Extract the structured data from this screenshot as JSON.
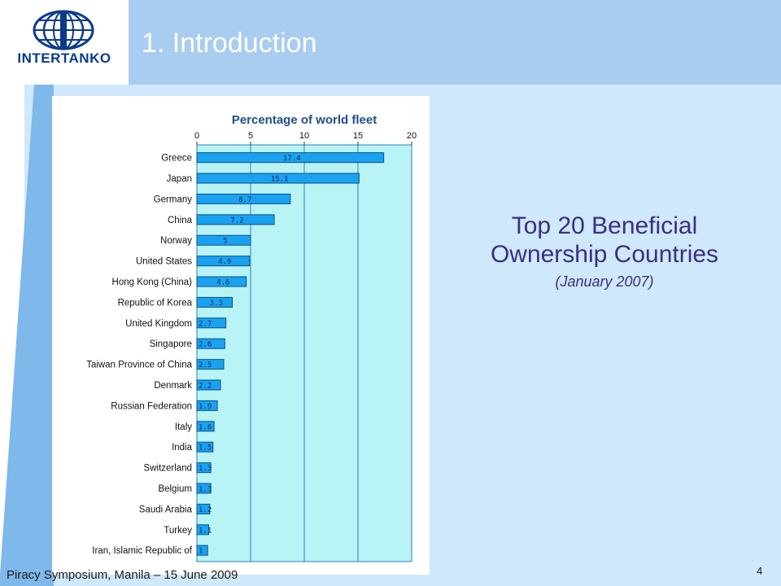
{
  "logo": {
    "text": "INTERTANKO"
  },
  "slide": {
    "title": "1. Introduction",
    "side_heading_line1": "Top 20 Beneficial",
    "side_heading_line2": "Ownership Countries",
    "side_subheading": "(January 2007)",
    "footer": "Piracy Symposium, Manila – 15 June 2009",
    "page_number": "4"
  },
  "colors": {
    "header_band": "#a9cdf0",
    "title_text": "#ffffff",
    "side_text": "#3a2e86",
    "bar_fill": "#1aa2f0",
    "plot_background": "#b8f3f5",
    "chart_title": "#1f4e8c"
  },
  "chart_data": {
    "type": "bar",
    "orientation": "horizontal",
    "title": "Percentage of world fleet",
    "xlim": [
      0,
      20
    ],
    "xticks": [
      0,
      5,
      10,
      15,
      20
    ],
    "categories": [
      "Greece",
      "Japan",
      "Germany",
      "China",
      "Norway",
      "United States",
      "Hong Kong (China)",
      "Republic of Korea",
      "United Kingdom",
      "Singapore",
      "Taiwan Province of China",
      "Denmark",
      "Russian Federation",
      "Italy",
      "India",
      "Switzerland",
      "Belgium",
      "Saudi Arabia",
      "Turkey",
      "Iran, Islamic Republic of"
    ],
    "values": [
      17.4,
      15.1,
      8.7,
      7.2,
      5,
      4.9,
      4.6,
      3.3,
      2.7,
      2.6,
      2.5,
      2.2,
      1.9,
      1.6,
      1.5,
      1.3,
      1.3,
      1.2,
      1.1,
      1
    ],
    "data_labels": [
      "17.4",
      "15.1",
      "8.7",
      "7.2",
      "5",
      "4.9",
      "4.6",
      "3.3",
      "2.7",
      "2.6",
      "2.5",
      "2.2",
      "1.9",
      "1.6",
      "1.5",
      "1.3",
      "1.3",
      "1.2",
      "1.1",
      "1"
    ],
    "grid": true
  }
}
